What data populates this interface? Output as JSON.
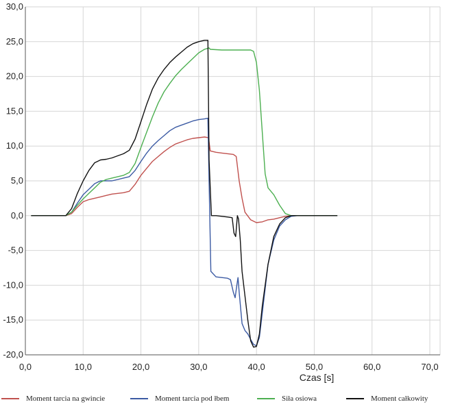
{
  "chart_data": {
    "type": "line",
    "xlabel": "Czas [s]",
    "ylabel": "",
    "xlim": [
      0,
      70
    ],
    "ylim": [
      -20,
      30
    ],
    "x_ticks": [
      "0,0",
      "10,0",
      "20,0",
      "30,0",
      "40,0",
      "50,0",
      "60,0",
      "70,0"
    ],
    "y_ticks": [
      "30,0",
      "25,0",
      "20,0",
      "15,0",
      "10,0",
      "5,0",
      "0,0",
      "-5,0",
      "-10,0",
      "-15,0",
      "-20,0"
    ],
    "grid": true,
    "legend_position": "bottom",
    "series": [
      {
        "name": "Moment tarcia na gwincie",
        "color": "#c0504d",
        "points": [
          [
            1,
            0
          ],
          [
            5,
            0
          ],
          [
            7,
            0
          ],
          [
            8,
            0.3
          ],
          [
            9,
            1.2
          ],
          [
            10,
            2.0
          ],
          [
            11,
            2.3
          ],
          [
            12,
            2.5
          ],
          [
            13,
            2.7
          ],
          [
            14,
            2.9
          ],
          [
            15,
            3.1
          ],
          [
            16,
            3.2
          ],
          [
            17,
            3.3
          ],
          [
            18,
            3.5
          ],
          [
            19,
            4.5
          ],
          [
            20,
            5.8
          ],
          [
            21,
            6.8
          ],
          [
            22,
            7.8
          ],
          [
            23,
            8.5
          ],
          [
            24,
            9.2
          ],
          [
            25,
            9.8
          ],
          [
            26,
            10.3
          ],
          [
            27,
            10.6
          ],
          [
            28,
            10.9
          ],
          [
            29,
            11.1
          ],
          [
            30,
            11.2
          ],
          [
            31,
            11.3
          ],
          [
            31.7,
            11.2
          ],
          [
            32,
            9.3
          ],
          [
            33,
            9.1
          ],
          [
            34,
            9.0
          ],
          [
            35,
            8.9
          ],
          [
            36,
            8.8
          ],
          [
            36.5,
            8.5
          ],
          [
            37,
            5.0
          ],
          [
            37.5,
            2.5
          ],
          [
            38,
            0.5
          ],
          [
            39,
            -0.6
          ],
          [
            40,
            -1.0
          ],
          [
            41,
            -0.9
          ],
          [
            42,
            -0.6
          ],
          [
            43,
            -0.5
          ],
          [
            44,
            -0.3
          ],
          [
            45,
            -0.1
          ],
          [
            46,
            0
          ],
          [
            50,
            0
          ],
          [
            54,
            0
          ]
        ]
      },
      {
        "name": "Moment tarcia pod łbem",
        "color": "#3b5aa3",
        "points": [
          [
            1,
            0
          ],
          [
            5,
            0
          ],
          [
            7,
            0
          ],
          [
            8,
            0.5
          ],
          [
            9,
            1.8
          ],
          [
            10,
            3.0
          ],
          [
            11,
            3.8
          ],
          [
            12,
            4.6
          ],
          [
            13,
            5.0
          ],
          [
            14,
            5.0
          ],
          [
            15,
            5.0
          ],
          [
            16,
            5.2
          ],
          [
            17,
            5.4
          ],
          [
            18,
            5.6
          ],
          [
            19,
            6.5
          ],
          [
            20,
            7.8
          ],
          [
            21,
            9.0
          ],
          [
            22,
            10.0
          ],
          [
            23,
            10.8
          ],
          [
            24,
            11.5
          ],
          [
            25,
            12.2
          ],
          [
            26,
            12.7
          ],
          [
            27,
            13.0
          ],
          [
            28,
            13.3
          ],
          [
            29,
            13.6
          ],
          [
            30,
            13.8
          ],
          [
            31,
            13.9
          ],
          [
            31.6,
            14.0
          ],
          [
            31.8,
            5.0
          ],
          [
            32.1,
            -8.0
          ],
          [
            33,
            -8.8
          ],
          [
            34,
            -8.9
          ],
          [
            35,
            -9.0
          ],
          [
            35.5,
            -9.2
          ],
          [
            36,
            -11.0
          ],
          [
            36.3,
            -11.8
          ],
          [
            36.6,
            -10.0
          ],
          [
            36.8,
            -8.9
          ],
          [
            37,
            -11.0
          ],
          [
            37.5,
            -15.5
          ],
          [
            38,
            -16.5
          ],
          [
            38.5,
            -17.0
          ],
          [
            39,
            -17.8
          ],
          [
            39.5,
            -18.5
          ],
          [
            40,
            -18.7
          ],
          [
            40.5,
            -17.5
          ],
          [
            41,
            -14.0
          ],
          [
            42,
            -7.0
          ],
          [
            43,
            -3.5
          ],
          [
            44,
            -1.5
          ],
          [
            45,
            -0.6
          ],
          [
            46,
            -0.1
          ],
          [
            47,
            0
          ],
          [
            50,
            0
          ],
          [
            54,
            0
          ]
        ]
      },
      {
        "name": "Siła osiowa",
        "color": "#4caf50",
        "points": [
          [
            1,
            0
          ],
          [
            5,
            0
          ],
          [
            7,
            0
          ],
          [
            8,
            0.5
          ],
          [
            9,
            1.5
          ],
          [
            10,
            2.4
          ],
          [
            11,
            3.2
          ],
          [
            12,
            4.0
          ],
          [
            13,
            4.8
          ],
          [
            14,
            5.2
          ],
          [
            15,
            5.4
          ],
          [
            16,
            5.6
          ],
          [
            17,
            5.8
          ],
          [
            18,
            6.2
          ],
          [
            19,
            7.5
          ],
          [
            20,
            9.8
          ],
          [
            21,
            12.0
          ],
          [
            22,
            14.2
          ],
          [
            23,
            16.2
          ],
          [
            24,
            17.8
          ],
          [
            25,
            19.0
          ],
          [
            26,
            20.1
          ],
          [
            27,
            21.0
          ],
          [
            28,
            21.8
          ],
          [
            29,
            22.6
          ],
          [
            30,
            23.4
          ],
          [
            31,
            23.9
          ],
          [
            31.8,
            24.1
          ],
          [
            32,
            23.9
          ],
          [
            34,
            23.8
          ],
          [
            36,
            23.8
          ],
          [
            38,
            23.8
          ],
          [
            39,
            23.8
          ],
          [
            39.5,
            23.6
          ],
          [
            40,
            22.0
          ],
          [
            40.5,
            18.0
          ],
          [
            41,
            12.0
          ],
          [
            41.5,
            6.0
          ],
          [
            42,
            4.0
          ],
          [
            43,
            3.0
          ],
          [
            44,
            1.5
          ],
          [
            45,
            0.3
          ],
          [
            46,
            0
          ],
          [
            50,
            0
          ],
          [
            54,
            0
          ]
        ]
      },
      {
        "name": "Moment całkowity",
        "color": "#111111",
        "points": [
          [
            1,
            0
          ],
          [
            5,
            0
          ],
          [
            7,
            0
          ],
          [
            8,
            1.0
          ],
          [
            9,
            3.2
          ],
          [
            10,
            5.0
          ],
          [
            11,
            6.5
          ],
          [
            12,
            7.6
          ],
          [
            13,
            8.0
          ],
          [
            14,
            8.1
          ],
          [
            15,
            8.3
          ],
          [
            16,
            8.6
          ],
          [
            17,
            8.9
          ],
          [
            18,
            9.4
          ],
          [
            19,
            11.0
          ],
          [
            20,
            13.5
          ],
          [
            21,
            16.0
          ],
          [
            22,
            18.2
          ],
          [
            23,
            19.8
          ],
          [
            24,
            21.0
          ],
          [
            25,
            22.0
          ],
          [
            26,
            22.8
          ],
          [
            27,
            23.5
          ],
          [
            28,
            24.2
          ],
          [
            29,
            24.7
          ],
          [
            30,
            25.0
          ],
          [
            31,
            25.2
          ],
          [
            31.6,
            25.2
          ],
          [
            31.8,
            8.0
          ],
          [
            32.2,
            0
          ],
          [
            33,
            0
          ],
          [
            34,
            -0.1
          ],
          [
            35,
            -0.2
          ],
          [
            35.8,
            -0.3
          ],
          [
            36.1,
            -2.5
          ],
          [
            36.4,
            -3.0
          ],
          [
            36.7,
            0
          ],
          [
            36.9,
            -0.5
          ],
          [
            37.2,
            -3.5
          ],
          [
            37.5,
            -8.0
          ],
          [
            38,
            -11.5
          ],
          [
            38.5,
            -15.0
          ],
          [
            39,
            -18.0
          ],
          [
            39.5,
            -18.9
          ],
          [
            40,
            -18.8
          ],
          [
            40.5,
            -17.0
          ],
          [
            41,
            -13.0
          ],
          [
            42,
            -7.0
          ],
          [
            43,
            -3.0
          ],
          [
            44,
            -1.2
          ],
          [
            45,
            -0.3
          ],
          [
            46,
            0
          ],
          [
            50,
            0
          ],
          [
            54,
            0
          ]
        ]
      }
    ]
  }
}
